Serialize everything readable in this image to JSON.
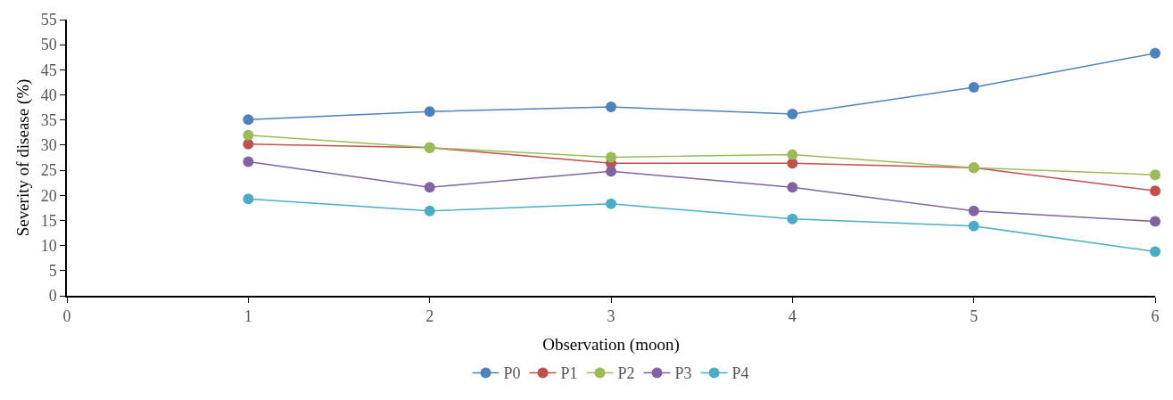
{
  "chart_data": {
    "type": "line",
    "xlabel": "Observation (moon)",
    "ylabel": "Severity of disease (%)",
    "x": [
      1,
      2,
      3,
      4,
      5,
      6
    ],
    "series": [
      {
        "name": "P0",
        "color": "#4f81bd",
        "values": [
          35.1,
          36.7,
          37.6,
          36.2,
          41.5,
          48.3
        ]
      },
      {
        "name": "P1",
        "color": "#c0504d",
        "values": [
          30.2,
          29.5,
          26.4,
          26.4,
          25.5,
          20.9
        ]
      },
      {
        "name": "P2",
        "color": "#9bbb59",
        "values": [
          32.0,
          29.5,
          27.6,
          28.1,
          25.5,
          24.1
        ]
      },
      {
        "name": "P3",
        "color": "#8064a2",
        "values": [
          26.7,
          21.6,
          24.8,
          21.6,
          16.9,
          14.8
        ]
      },
      {
        "name": "P4",
        "color": "#4bacc6",
        "values": [
          19.3,
          16.9,
          18.3,
          15.3,
          13.9,
          8.8
        ]
      }
    ],
    "xlim": [
      0,
      6
    ],
    "xticks": [
      0,
      1,
      2,
      3,
      4,
      5,
      6
    ],
    "ylim": [
      0,
      55
    ],
    "yticks": [
      0,
      5,
      10,
      15,
      20,
      25,
      30,
      35,
      40,
      45,
      50,
      55
    ],
    "legend": "bottom",
    "marker": "circle",
    "line_style": "solid"
  }
}
